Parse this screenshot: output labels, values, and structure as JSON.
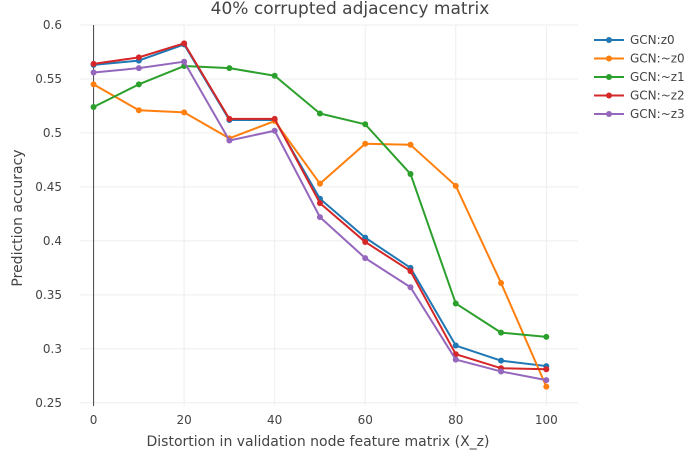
{
  "chart_data": {
    "type": "line",
    "title": "40% corrupted adjacency matrix",
    "xlabel": "Distortion in validation node feature matrix (X_z)",
    "ylabel": "Prediction accuracy",
    "x": [
      0,
      10,
      20,
      30,
      40,
      50,
      60,
      70,
      80,
      90,
      100
    ],
    "xticks": [
      0,
      20,
      40,
      60,
      80,
      100
    ],
    "xtick_labels": [
      "0",
      "20",
      "40",
      "60",
      "80",
      "100"
    ],
    "yticks": [
      0.25,
      0.3,
      0.35,
      0.4,
      0.45,
      0.5,
      0.55,
      0.6
    ],
    "ytick_labels": [
      "0.25",
      "0.3",
      "0.35",
      "0.4",
      "0.45",
      "0.5",
      "0.55",
      "0.6"
    ],
    "xlim": [
      -3,
      107
    ],
    "ylim": [
      0.247,
      0.6
    ],
    "grid": true,
    "legend_position": "top-right",
    "series": [
      {
        "name": "GCN:z0",
        "color": "#1f77b4",
        "values": [
          0.563,
          0.567,
          0.582,
          0.512,
          0.512,
          0.439,
          0.403,
          0.375,
          0.303,
          0.289,
          0.284
        ]
      },
      {
        "name": "GCN:~z0",
        "color": "#ff7f0e",
        "values": [
          0.545,
          0.521,
          0.519,
          0.495,
          0.511,
          0.453,
          0.49,
          0.489,
          0.451,
          0.361,
          0.265
        ]
      },
      {
        "name": "GCN:~z1",
        "color": "#2ca02c",
        "values": [
          0.524,
          0.545,
          0.562,
          0.56,
          0.553,
          0.518,
          0.508,
          0.462,
          0.342,
          0.315,
          0.311
        ]
      },
      {
        "name": "GCN:~z2",
        "color": "#d62728",
        "values": [
          0.564,
          0.57,
          0.583,
          0.513,
          0.513,
          0.435,
          0.399,
          0.372,
          0.295,
          0.282,
          0.281
        ]
      },
      {
        "name": "GCN:~z3",
        "color": "#9467bd",
        "values": [
          0.556,
          0.56,
          0.566,
          0.493,
          0.502,
          0.422,
          0.384,
          0.357,
          0.29,
          0.279,
          0.271
        ]
      }
    ]
  }
}
